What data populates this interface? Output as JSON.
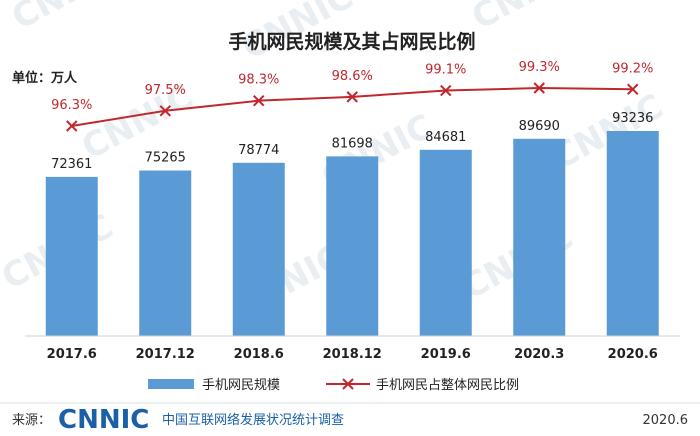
{
  "chart_data": {
    "type": "bar",
    "title": "手机网民规模及其占网民比例",
    "unit_label": "单位：万人",
    "categories": [
      "2017.6",
      "2017.12",
      "2018.6",
      "2018.12",
      "2019.6",
      "2020.3",
      "2020.6"
    ],
    "series": [
      {
        "name": "手机网民规模",
        "type": "bar",
        "values": [
          72361,
          75265,
          78774,
          81698,
          84681,
          89690,
          93236
        ],
        "color": "#5b9bd5"
      },
      {
        "name": "手机网民占整体网民比例",
        "type": "line",
        "values": [
          96.3,
          97.5,
          98.3,
          98.6,
          99.1,
          99.3,
          99.2
        ],
        "labels": [
          "96.3%",
          "97.5%",
          "98.3%",
          "98.6%",
          "99.1%",
          "99.3%",
          "99.2%"
        ],
        "color": "#c0282d"
      }
    ],
    "legend_position": "bottom",
    "grid": false
  },
  "footer": {
    "source_label": "来源：",
    "logo_text": "CNNIC",
    "org_text": "中国互联网络发展状况统计调查",
    "date": "2020.6"
  },
  "watermark": "CNNIC",
  "colors": {
    "bar": "#5b9bd5",
    "line": "#c0282d",
    "brand": "#1b5fa8"
  }
}
